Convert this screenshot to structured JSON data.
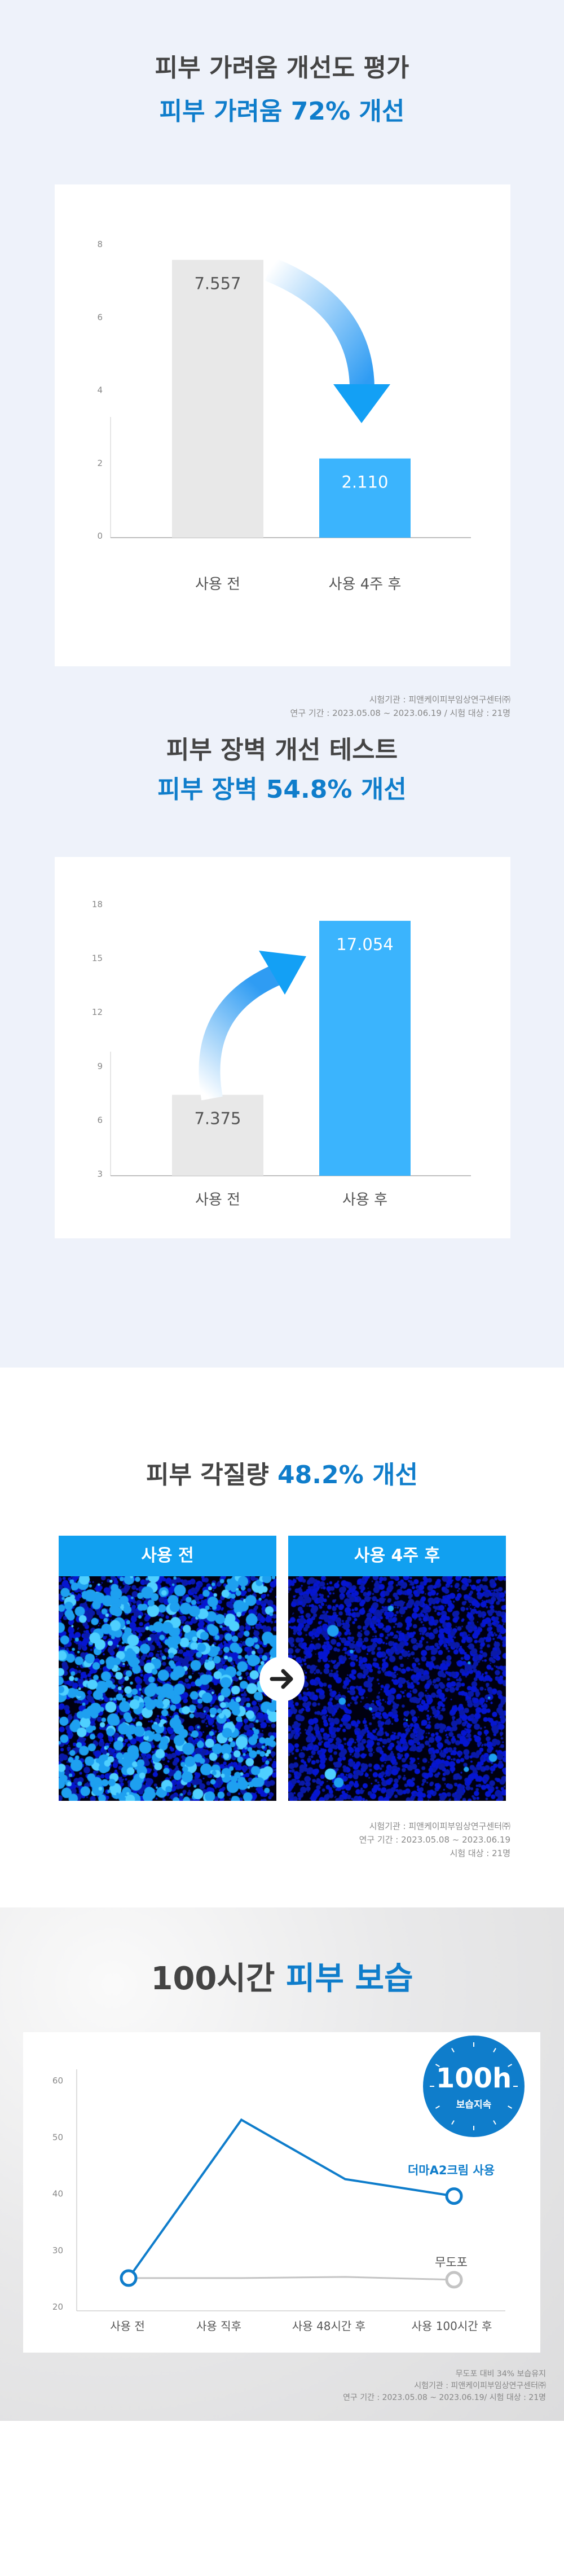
{
  "section1": {
    "title": "피부 가려움 개선도 평가",
    "subtitle": "피부 가려움 72% 개선",
    "footnotes": [
      "시험기관 : 피앤케이피부임상연구센터㈜",
      "연구 기간 : 2023.05.08 ~ 2023.06.19 / 시험 대상 : 21명"
    ]
  },
  "section2": {
    "title": "피부 장벽 개선 테스트",
    "subtitle": "피부 장벽 54.8% 개선"
  },
  "section3": {
    "title_dark": "피부 각질량",
    "title_blue": "48.2% 개선",
    "before_label": "사용 전",
    "after_label": "사용 4주 후",
    "footnotes": [
      "시험기관 : 피앤케이피부임상연구센터㈜",
      "연구 기간 : 2023.05.08 ~ 2023.06.19",
      "시험 대상 : 21명"
    ]
  },
  "section4": {
    "title_dark": "100시간",
    "title_blue": "피부 보습",
    "badge_value": "100h",
    "badge_label": "보습지속",
    "footnotes": [
      "무도포 대비 34% 보습유지",
      "시험기관 : 피앤케이피부임상연구센터㈜",
      "연구 기간 : 2023.05.08 ~ 2023.06.19/ 시험 대상 : 21명"
    ]
  },
  "colors": {
    "accent": "#0f7dcb",
    "bar_blue": "#3bb4fd",
    "bar_gray": "#e8e8e8",
    "background": "#eef2fa",
    "line_gray": "#c4c4c4"
  },
  "chart_data": [
    {
      "type": "bar",
      "categories": [
        "사용 전",
        "사용 4주 후"
      ],
      "values": [
        7.557,
        2.11
      ],
      "value_labels": [
        "7.557",
        "2.110"
      ],
      "ylim": [
        0,
        8
      ],
      "yticks": [
        "0",
        "2",
        "4",
        "6",
        "8"
      ],
      "grid": false
    },
    {
      "type": "bar",
      "categories": [
        "사용 전",
        "사용 후"
      ],
      "values": [
        7.375,
        17.054
      ],
      "value_labels": [
        "7.375",
        "17.054"
      ],
      "ylim": [
        3,
        18
      ],
      "yticks": [
        "3",
        "6",
        "9",
        "12",
        "15",
        "18"
      ],
      "grid": false
    },
    {
      "type": "line",
      "categories": [
        "사용 전",
        "사용 직후",
        "사용 48시간 후",
        "사용 100시간 후"
      ],
      "series": [
        {
          "name": "더마A2크림 사용",
          "values": [
            25,
            53,
            42.5,
            39.5
          ],
          "color": "#0f7dcb"
        },
        {
          "name": "무도포",
          "values": [
            25,
            25,
            25.2,
            24.7
          ],
          "color": "#c4c4c4"
        }
      ],
      "ylim": [
        20,
        60
      ],
      "yticks": [
        "20",
        "30",
        "40",
        "50",
        "60"
      ],
      "grid": false
    }
  ]
}
